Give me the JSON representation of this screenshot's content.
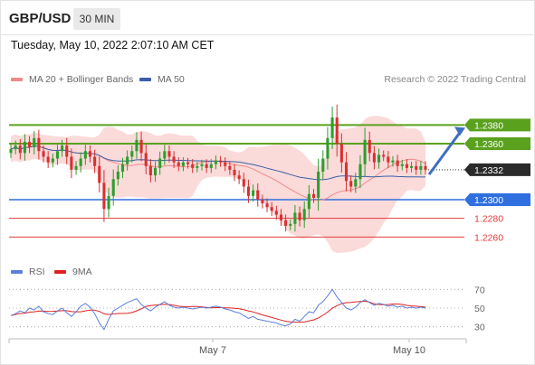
{
  "header": {
    "symbol": "GBP/USD",
    "timeframe": "30 MIN"
  },
  "datetime": "Tuesday, May 10, 2022 2:07:10 AM CET",
  "price_legend": [
    {
      "label": "MA 20 + Bollinger Bands",
      "color": "#f08a8a"
    },
    {
      "label": "MA 50",
      "color": "#3a5fa8"
    }
  ],
  "copyright": "Research © 2022 Trading Central",
  "rsi_legend": [
    {
      "label": "RSI",
      "color": "#5b7fd9"
    },
    {
      "label": "9MA",
      "color": "#e02020"
    }
  ],
  "colors": {
    "up": "#2e9e2e",
    "down": "#d93030",
    "resistance": "#5aa11e",
    "current": "#2a2a2a",
    "pivot": "#2f6fe0",
    "support": "#e23a3a",
    "band": "#fbdada",
    "ma50": "#3a5fa8",
    "rsi": "#5b7fd9",
    "rsima": "#e02020"
  },
  "chart_data": [
    {
      "type": "candlestick",
      "title": "GBP/USD 30 MIN",
      "x_ticks": [
        "May 7",
        "May 10"
      ],
      "ylim": [
        1.224,
        1.242
      ],
      "price_levels": [
        {
          "label": "1.2380",
          "value": 1.238,
          "kind": "resistance"
        },
        {
          "label": "1.2360",
          "value": 1.236,
          "kind": "resistance"
        },
        {
          "label": "1.2332",
          "value": 1.2332,
          "kind": "current"
        },
        {
          "label": "1.2300",
          "value": 1.23,
          "kind": "pivot"
        },
        {
          "label": "1.2280",
          "value": 1.228,
          "kind": "support"
        },
        {
          "label": "1.2260",
          "value": 1.226,
          "kind": "support"
        }
      ],
      "closes": [
        1.2354,
        1.2358,
        1.235,
        1.2362,
        1.2356,
        1.2366,
        1.2352,
        1.2346,
        1.234,
        1.2344,
        1.2352,
        1.2358,
        1.2346,
        1.2332,
        1.2336,
        1.2344,
        1.2352,
        1.2346,
        1.2336,
        1.2318,
        1.229,
        1.2304,
        1.2322,
        1.233,
        1.2338,
        1.2346,
        1.2352,
        1.2364,
        1.235,
        1.2336,
        1.2326,
        1.2334,
        1.2344,
        1.2352,
        1.2346,
        1.234,
        1.2336,
        1.234,
        1.2338,
        1.2334,
        1.2336,
        1.2338,
        1.2334,
        1.2338,
        1.2342,
        1.234,
        1.2336,
        1.2332,
        1.2326,
        1.2322,
        1.2314,
        1.2304,
        1.231,
        1.23,
        1.2296,
        1.2292,
        1.2288,
        1.2284,
        1.2278,
        1.2272,
        1.2274,
        1.2286,
        1.2278,
        1.229,
        1.2306,
        1.2302,
        1.233,
        1.2344,
        1.2366,
        1.2388,
        1.236,
        1.234,
        1.232,
        1.2314,
        1.2322,
        1.2338,
        1.2364,
        1.235,
        1.234,
        1.2348,
        1.2346,
        1.234,
        1.2342,
        1.2336,
        1.2338,
        1.2334,
        1.2336,
        1.2332,
        1.2336,
        1.2332
      ]
    },
    {
      "type": "line",
      "title": "RSI",
      "series": [
        {
          "name": "RSI"
        },
        {
          "name": "9MA"
        }
      ],
      "ylim": [
        20,
        80
      ],
      "y_ticks": [
        70,
        50,
        30
      ],
      "rsi_values": [
        42,
        44,
        47,
        45,
        50,
        48,
        52,
        46,
        44,
        43,
        47,
        50,
        45,
        41,
        46,
        52,
        55,
        51,
        44,
        34,
        27,
        38,
        47,
        50,
        53,
        56,
        58,
        60,
        54,
        50,
        47,
        51,
        54,
        57,
        53,
        51,
        50,
        51,
        50,
        49,
        50,
        51,
        50,
        51,
        52,
        51,
        49,
        48,
        46,
        45,
        42,
        39,
        41,
        38,
        37,
        36,
        35,
        34,
        32,
        31,
        33,
        38,
        36,
        41,
        46,
        45,
        53,
        57,
        63,
        70,
        62,
        56,
        50,
        48,
        51,
        56,
        59,
        56,
        53,
        55,
        54,
        52,
        53,
        51,
        52,
        50,
        51,
        50,
        51,
        50
      ]
    }
  ]
}
